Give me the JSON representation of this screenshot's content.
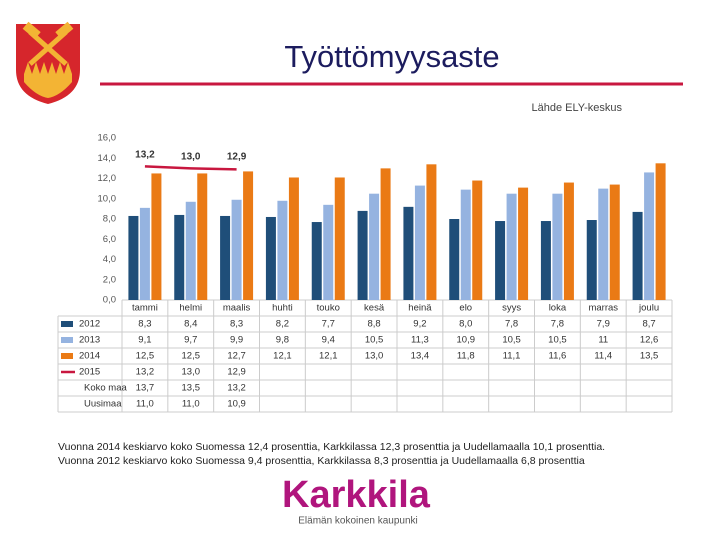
{
  "header": {
    "title": "Työttömyysaste",
    "source": "Lähde ELY-keskus"
  },
  "chart_data": {
    "type": "bar",
    "categories": [
      "tammi",
      "helmi",
      "maalis",
      "huhti",
      "touko",
      "kesä",
      "heinä",
      "elo",
      "syys",
      "loka",
      "marras",
      "joulu"
    ],
    "ylim": [
      0,
      16
    ],
    "yticks": [
      {
        "value": 0,
        "label": "0,0"
      },
      {
        "value": 2,
        "label": "2,0"
      },
      {
        "value": 4,
        "label": "4,0"
      },
      {
        "value": 6,
        "label": "6,0"
      },
      {
        "value": 8,
        "label": "8,0"
      },
      {
        "value": 10,
        "label": "10,0"
      },
      {
        "value": 12,
        "label": "12,0"
      },
      {
        "value": 14,
        "label": "14,0"
      },
      {
        "value": 16,
        "label": "16,0"
      }
    ],
    "grid": false,
    "series": [
      {
        "name": "2012",
        "kind": "bar",
        "color": "#1f4e79",
        "values": [
          8.3,
          8.4,
          8.3,
          8.2,
          7.7,
          8.8,
          9.2,
          8.0,
          7.8,
          7.8,
          7.9,
          8.7
        ],
        "value_labels": [
          "8,3",
          "8,4",
          "8,3",
          "8,2",
          "7,7",
          "8,8",
          "9,2",
          "8,0",
          "7,8",
          "7,8",
          "7,9",
          "8,7"
        ]
      },
      {
        "name": "2013",
        "kind": "bar",
        "color": "#95b3e0",
        "values": [
          9.1,
          9.7,
          9.9,
          9.8,
          9.4,
          10.5,
          11.3,
          10.9,
          10.5,
          10.5,
          11,
          12.6
        ],
        "value_labels": [
          "9,1",
          "9,7",
          "9,9",
          "9,8",
          "9,4",
          "10,5",
          "11,3",
          "10,9",
          "10,5",
          "10,5",
          "11",
          "12,6"
        ]
      },
      {
        "name": "2014",
        "kind": "bar",
        "color": "#ea7a15",
        "values": [
          12.5,
          12.5,
          12.7,
          12.1,
          12.1,
          13.0,
          13.4,
          11.8,
          11.1,
          11.6,
          11.4,
          13.5
        ],
        "value_labels": [
          "12,5",
          "12,5",
          "12,7",
          "12,1",
          "12,1",
          "13,0",
          "13,4",
          "11,8",
          "11,1",
          "11,6",
          "11,4",
          "13,5"
        ]
      },
      {
        "name": "2015",
        "kind": "line",
        "color": "#c8173f",
        "values": [
          13.2,
          13.0,
          12.9,
          null,
          null,
          null,
          null,
          null,
          null,
          null,
          null,
          null
        ],
        "value_labels": [
          "13,2",
          "13,0",
          "12,9",
          null,
          null,
          null,
          null,
          null,
          null,
          null,
          null,
          null
        ]
      },
      {
        "name": "Koko maa",
        "values": [
          13.7,
          13.5,
          13.2,
          null,
          null,
          null,
          null,
          null,
          null,
          null,
          null,
          null
        ],
        "value_labels": [
          "13,7",
          "13,5",
          "13,2",
          null,
          null,
          null,
          null,
          null,
          null,
          null,
          null,
          null
        ]
      },
      {
        "name": "Uusimaa",
        "values": [
          11.0,
          11.0,
          10.9,
          null,
          null,
          null,
          null,
          null,
          null,
          null,
          null,
          null
        ],
        "value_labels": [
          "11,0",
          "11,0",
          "10,9",
          null,
          null,
          null,
          null,
          null,
          null,
          null,
          null,
          null
        ]
      }
    ]
  },
  "notes": [
    "Vuonna 2014 keskiarvo koko Suomessa 12,4 prosenttia, Karkkilassa 12,3 prosenttia ja Uudellamaalla 10,1 prosenttia.",
    "Vuonna 2012 keskiarvo koko Suomessa 9,4 prosenttia, Karkkilassa 8,3 prosenttia ja Uudellamaalla 6,8 prosenttia"
  ],
  "logo": {
    "name": "Karkkila",
    "slogan": "Elämän kokoinen kaupunki"
  }
}
